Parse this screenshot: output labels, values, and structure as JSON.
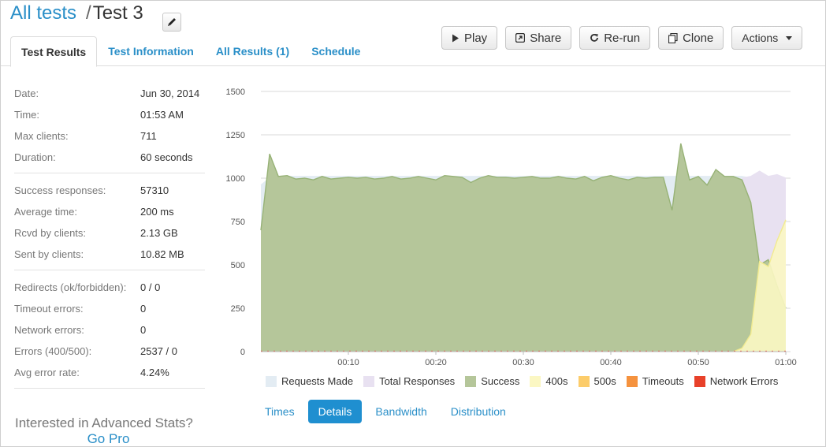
{
  "breadcrumb": {
    "parent": "All tests",
    "separator": "/",
    "current": "Test 3"
  },
  "tabs": [
    {
      "label": "Test Results"
    },
    {
      "label": "Test Information"
    },
    {
      "label": "All Results (1)"
    },
    {
      "label": "Schedule"
    }
  ],
  "toolbar": {
    "play": "Play",
    "share": "Share",
    "rerun": "Re-run",
    "clone": "Clone",
    "actions": "Actions"
  },
  "stats": {
    "group1": [
      {
        "label": "Date:",
        "value": "Jun 30, 2014"
      },
      {
        "label": "Time:",
        "value": "01:53 AM"
      },
      {
        "label": "Max clients:",
        "value": "711"
      },
      {
        "label": "Duration:",
        "value": "60 seconds"
      }
    ],
    "group2": [
      {
        "label": "Success responses:",
        "value": "57310"
      },
      {
        "label": "Average time:",
        "value": "200 ms"
      },
      {
        "label": "Rcvd by clients:",
        "value": "2.13 GB"
      },
      {
        "label": "Sent by clients:",
        "value": "10.82 MB"
      }
    ],
    "group3": [
      {
        "label": "Redirects (ok/forbidden):",
        "value": "0 / 0"
      },
      {
        "label": "Timeout errors:",
        "value": "0"
      },
      {
        "label": "Network errors:",
        "value": "0"
      },
      {
        "label": "Errors (400/500):",
        "value": "2537 / 0"
      },
      {
        "label": "Avg error rate:",
        "value": "4.24%"
      }
    ]
  },
  "promo": {
    "question": "Interested in Advanced Stats?",
    "link": "Go Pro"
  },
  "subtabs": [
    "Times",
    "Details",
    "Bandwidth",
    "Distribution"
  ],
  "colors": {
    "accent": "#2a8fc8",
    "requests_made": "#e3ecf3",
    "total_responses": "#e8e1f1",
    "success": "#b5c69a",
    "success_line": "#97b276",
    "s400": "#fbf7c3",
    "s500": "#fccc6a",
    "timeouts": "#f5923e",
    "network_errors": "#e8412a"
  },
  "chart_data": {
    "type": "area",
    "y_ticks": [
      "1500",
      "1250",
      "1000",
      "750",
      "500",
      "250",
      "0"
    ],
    "ylim": [
      0,
      1500
    ],
    "x_ticks": [
      "00:10",
      "00:20",
      "00:30",
      "00:40",
      "00:50",
      "01:00"
    ],
    "xlim": [
      0,
      60
    ],
    "grid": true,
    "legend_placement": "bottom",
    "series": [
      {
        "name": "Requests Made",
        "color_key": "requests_made",
        "x": [
          0,
          1,
          2,
          55,
          56,
          57,
          58,
          59,
          60
        ],
        "values": [
          960,
          1000,
          1010,
          1010,
          1000,
          980,
          1000,
          1000,
          1000
        ]
      },
      {
        "name": "Total Responses",
        "color_key": "total_responses",
        "x": [
          55,
          56,
          57,
          58,
          59,
          60
        ],
        "values": [
          1000,
          1010,
          1040,
          1010,
          1020,
          1000
        ]
      },
      {
        "name": "Success",
        "color_key": "success",
        "x": [
          0,
          1,
          2,
          3,
          4,
          5,
          6,
          7,
          8,
          9,
          10,
          11,
          12,
          13,
          14,
          15,
          16,
          17,
          18,
          19,
          20,
          21,
          22,
          23,
          24,
          25,
          26,
          27,
          28,
          29,
          30,
          31,
          32,
          33,
          34,
          35,
          36,
          37,
          38,
          39,
          40,
          41,
          42,
          43,
          44,
          45,
          46,
          47,
          48,
          49,
          50,
          51,
          52,
          53,
          54,
          55,
          56,
          57,
          58,
          59,
          60
        ],
        "values": [
          700,
          1140,
          1010,
          1015,
          995,
          1000,
          990,
          1010,
          995,
          1000,
          1005,
          1000,
          1005,
          995,
          1000,
          1010,
          995,
          1000,
          1010,
          1000,
          990,
          1015,
          1010,
          1005,
          975,
          1000,
          1015,
          1005,
          1005,
          1000,
          1005,
          1010,
          1000,
          1000,
          1010,
          1000,
          995,
          1010,
          985,
          1005,
          1015,
          1000,
          990,
          1005,
          1000,
          1005,
          1005,
          815,
          1200,
          990,
          1010,
          960,
          1050,
          1010,
          1010,
          990,
          860,
          500,
          530,
          380,
          250
        ]
      },
      {
        "name": "400s",
        "color_key": "s400",
        "x": [
          54,
          55,
          56,
          57,
          58,
          59,
          60
        ],
        "values": [
          0,
          20,
          100,
          520,
          490,
          640,
          760
        ]
      },
      {
        "name": "500s",
        "color_key": "s500",
        "x": [
          0,
          60
        ],
        "values": [
          0,
          0
        ]
      },
      {
        "name": "Timeouts",
        "color_key": "timeouts",
        "x": [
          0,
          60
        ],
        "values": [
          0,
          0
        ]
      },
      {
        "name": "Network Errors",
        "color_key": "network_errors",
        "x": [
          0,
          60
        ],
        "values": [
          0,
          0
        ]
      }
    ]
  }
}
